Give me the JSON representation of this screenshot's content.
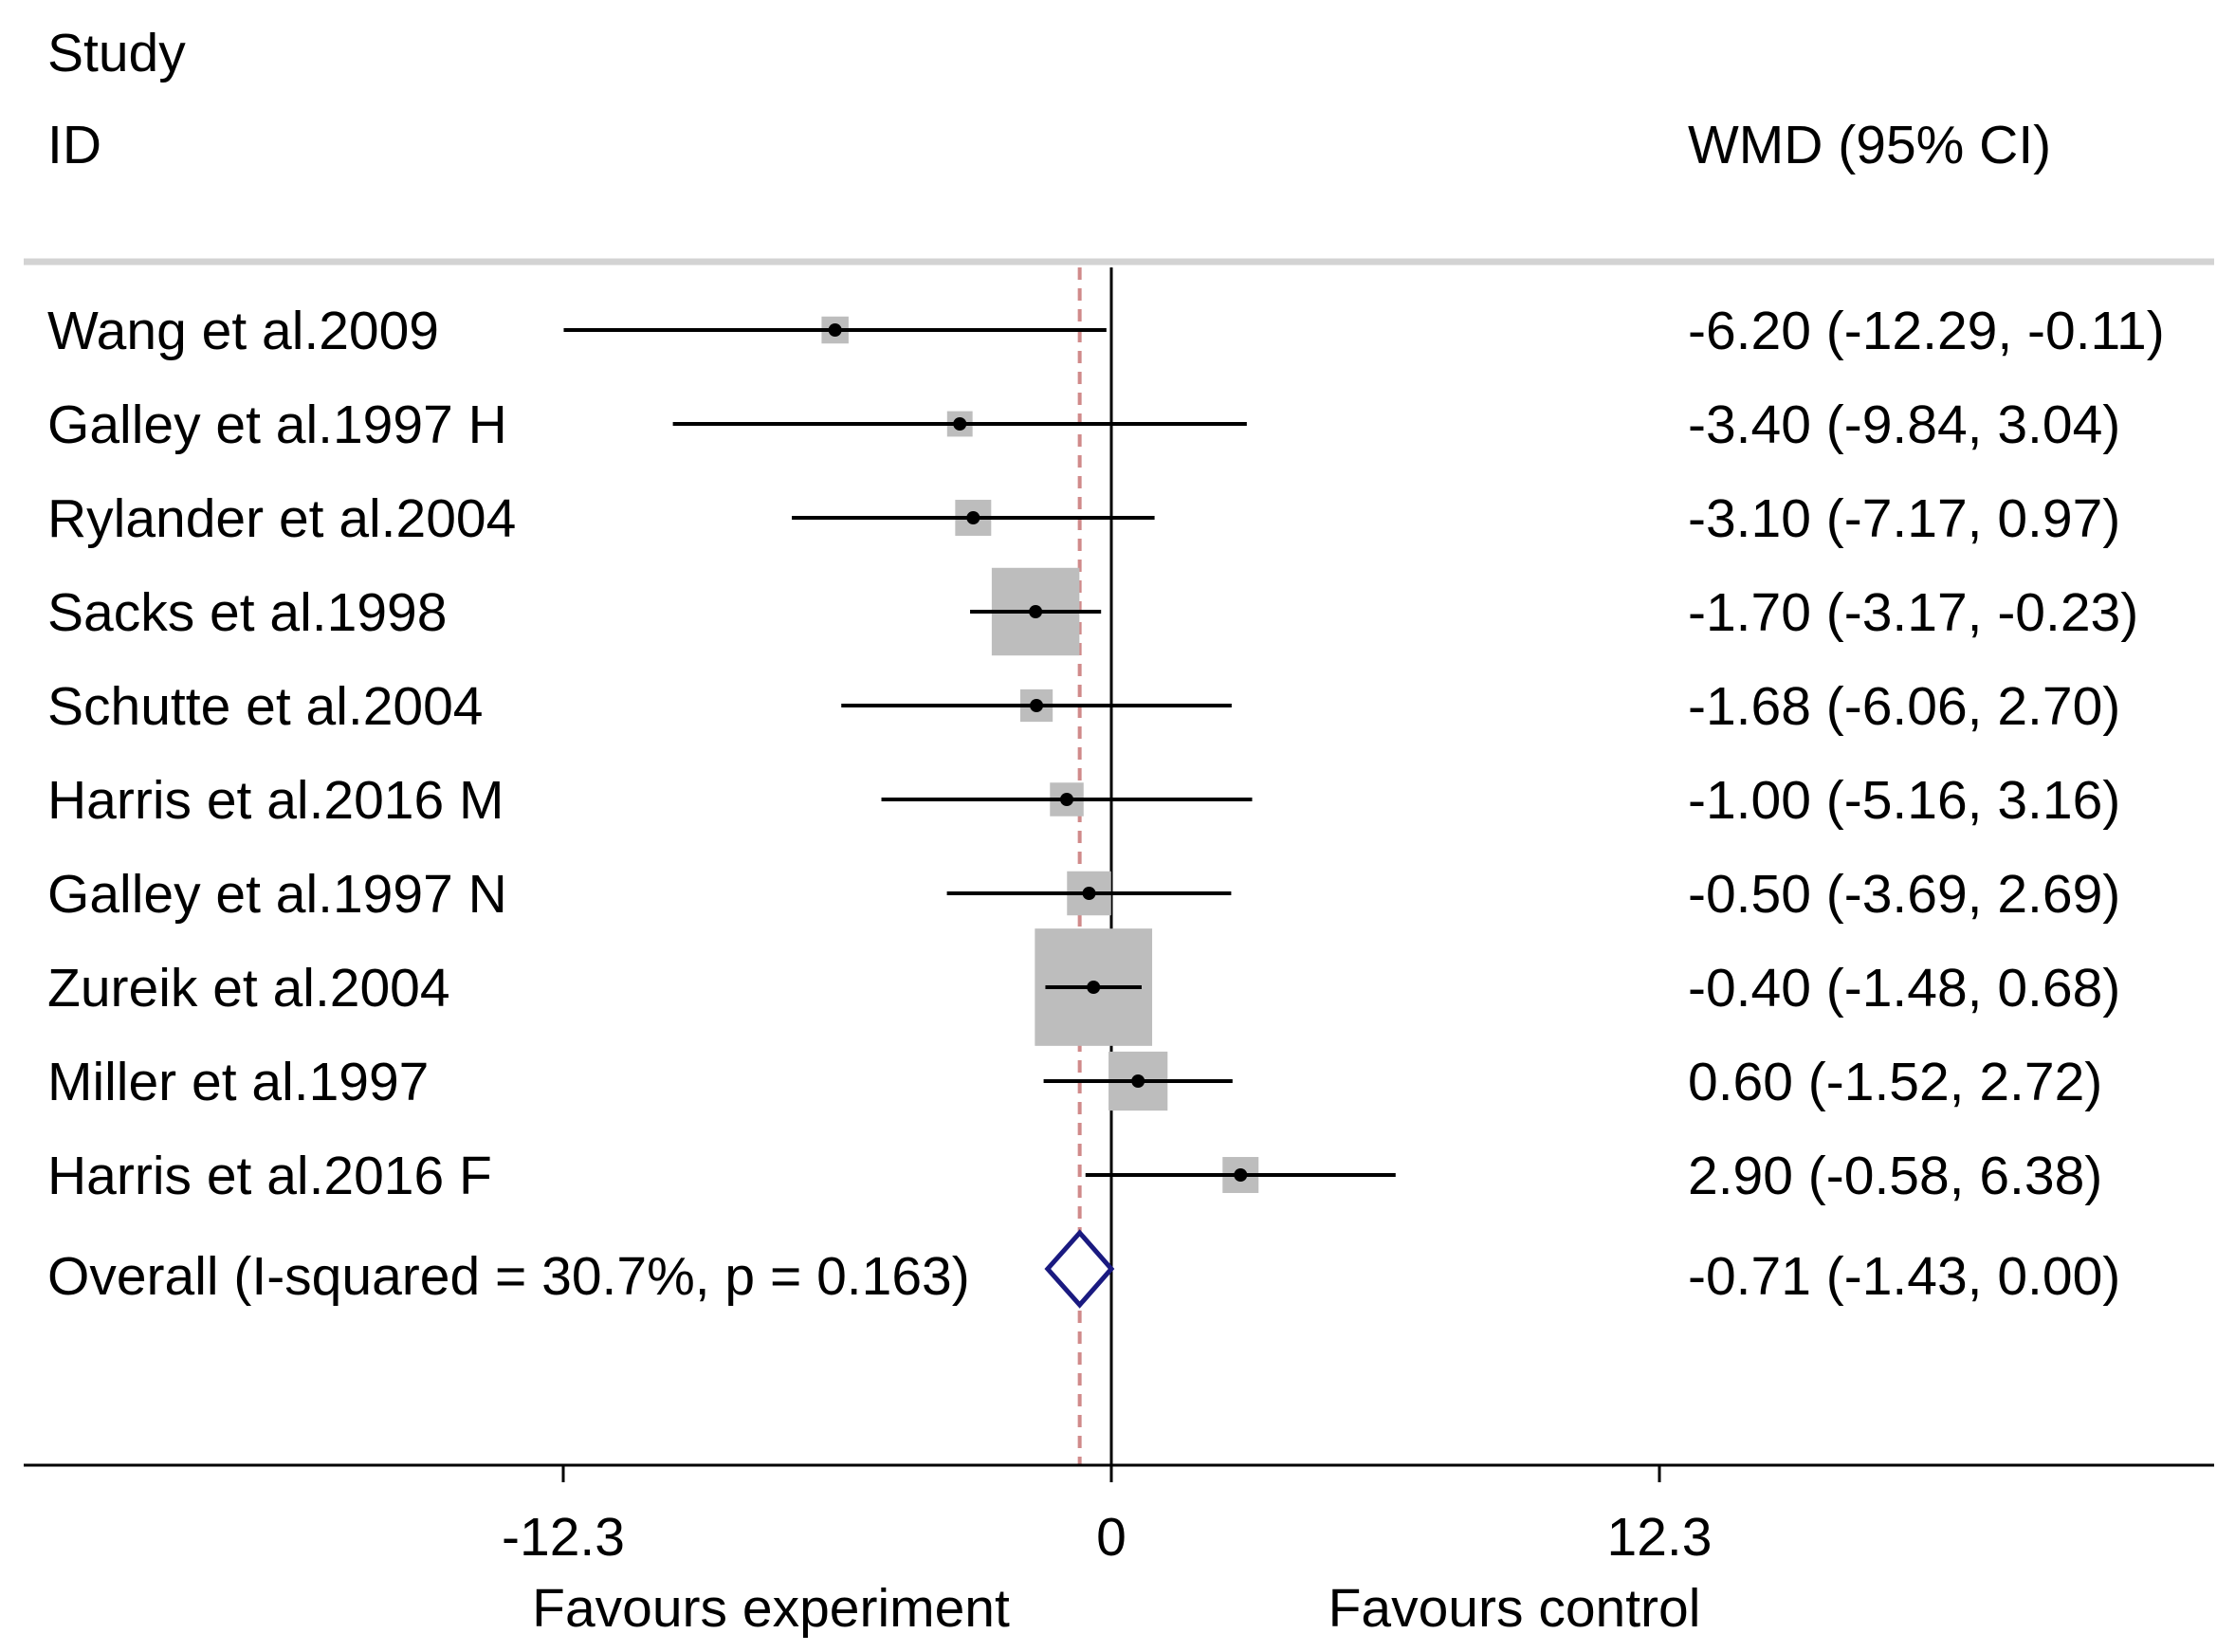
{
  "chart_data": {
    "type": "forest",
    "header": {
      "study": "Study",
      "id": "ID",
      "effect": "WMD (95% CI)"
    },
    "studies": [
      {
        "label": "Wang et al.2009",
        "est": -6.2,
        "lo": -12.29,
        "hi": -0.11,
        "ci_text": "-6.20 (-12.29, -0.11)",
        "weight": 0.9
      },
      {
        "label": "Galley et al.1997 H",
        "est": -3.4,
        "lo": -9.84,
        "hi": 3.04,
        "ci_text": "-3.40 (-9.84, 3.04)",
        "weight": 0.8
      },
      {
        "label": "Rylander et al.2004",
        "est": -3.1,
        "lo": -7.17,
        "hi": 0.97,
        "ci_text": "-3.10 (-7.17, 0.97)",
        "weight": 1.6
      },
      {
        "label": "Sacks et al.1998",
        "est": -1.7,
        "lo": -3.17,
        "hi": -0.23,
        "ci_text": "-1.70 (-3.17, -0.23)",
        "weight": 9.5
      },
      {
        "label": "Schutte et al.2004",
        "est": -1.68,
        "lo": -6.06,
        "hi": 2.7,
        "ci_text": "-1.68 (-6.06, 2.70)",
        "weight": 1.3
      },
      {
        "label": "Harris et al.2016 M",
        "est": -1.0,
        "lo": -5.16,
        "hi": 3.16,
        "ci_text": "-1.00 (-5.16, 3.16)",
        "weight": 1.4
      },
      {
        "label": "Galley et al.1997 N",
        "est": -0.5,
        "lo": -3.69,
        "hi": 2.69,
        "ci_text": "-0.50 (-3.69, 2.69)",
        "weight": 2.4
      },
      {
        "label": "Zureik et al.2004",
        "est": -0.4,
        "lo": -1.48,
        "hi": 0.68,
        "ci_text": "-0.40 (-1.48, 0.68)",
        "weight": 17.0
      },
      {
        "label": "Miller et al.1997",
        "est": 0.6,
        "lo": -1.52,
        "hi": 2.72,
        "ci_text": "0.60 (-1.52, 2.72)",
        "weight": 4.3
      },
      {
        "label": "Harris et al.2016 F",
        "est": 2.9,
        "lo": -0.58,
        "hi": 6.38,
        "ci_text": "2.90 (-0.58, 6.38)",
        "weight": 1.6
      }
    ],
    "overall": {
      "label": "Overall  (I-squared = 30.7%, p = 0.163)",
      "est": -0.71,
      "lo": -1.43,
      "hi": 0.0,
      "ci_text": "-0.71 (-1.43, 0.00)"
    },
    "x_ticks": [
      -12.3,
      0,
      12.3
    ],
    "x_tick_labels": [
      "-12.3",
      "0",
      "12.3"
    ],
    "xlim": [
      -24.5,
      24.5
    ],
    "arrow_clip": -12.3,
    "favours_left": "Favours experiment",
    "favours_right": "Favours control",
    "colors": {
      "box": "#bdbdbd",
      "line": "#000000",
      "diamond": "#1a1a80",
      "ref_line": "#d08a8a",
      "separator": "#d3d3d3"
    }
  }
}
